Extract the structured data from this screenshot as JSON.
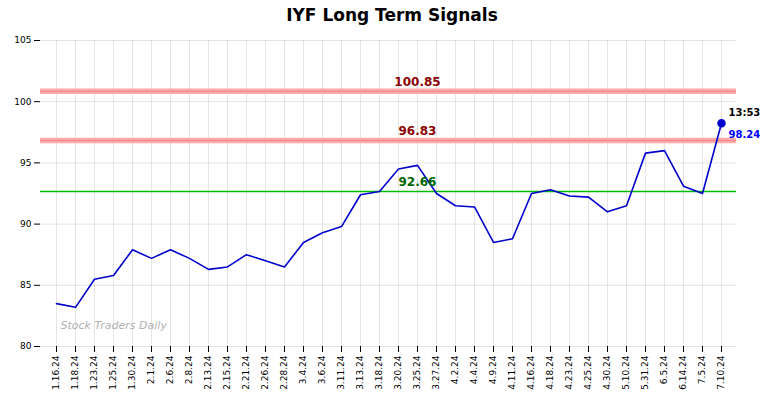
{
  "chart_data": {
    "type": "line",
    "title": "IYF Long Term Signals",
    "categories": [
      "1.16.24",
      "1.18.24",
      "1.23.24",
      "1.25.24",
      "1.30.24",
      "2.1.24",
      "2.6.24",
      "2.8.24",
      "2.13.24",
      "2.15.24",
      "2.21.24",
      "2.26.24",
      "2.28.24",
      "3.4.24",
      "3.6.24",
      "3.11.24",
      "3.13.24",
      "3.18.24",
      "3.20.24",
      "3.25.24",
      "3.27.24",
      "4.2.24",
      "4.4.24",
      "4.9.24",
      "4.11.24",
      "4.16.24",
      "4.18.24",
      "4.23.24",
      "4.25.24",
      "4.30.24",
      "5.10.24",
      "5.31.24",
      "6.5.24",
      "6.14.24",
      "7.5.24",
      "7.10.24"
    ],
    "values": [
      83.5,
      83.2,
      85.5,
      85.8,
      87.9,
      87.2,
      87.9,
      87.2,
      86.3,
      86.5,
      87.5,
      87.0,
      86.5,
      88.5,
      89.3,
      89.8,
      92.4,
      92.66,
      94.5,
      94.8,
      92.5,
      91.5,
      91.4,
      88.5,
      88.8,
      92.5,
      92.8,
      92.3,
      92.2,
      91.0,
      91.5,
      95.8,
      96.0,
      93.1,
      92.5,
      98.24
    ],
    "color": "#0000cc",
    "marker": "circle",
    "ylim": [
      80,
      105
    ],
    "yticks": [
      80,
      85,
      90,
      95,
      100,
      105
    ],
    "grid": true,
    "reference_lines": [
      {
        "value": 100.85,
        "label": "100.85",
        "color": "#ff8888",
        "band_color": "#ffaaaa",
        "band_half": 0.22,
        "label_color": "#8b0000"
      },
      {
        "value": 96.83,
        "label": "96.83",
        "color": "#ff8888",
        "band_color": "#ffaaaa",
        "band_half": 0.22,
        "label_color": "#8b0000"
      },
      {
        "value": 92.66,
        "label": "92.66",
        "color": "#00bb00",
        "label_color": "#006600"
      }
    ],
    "annotations": [
      {
        "text": "13:53",
        "category": "7.10.24",
        "value": 98.24,
        "color": "#000000"
      },
      {
        "text": "98.24",
        "category": "7.10.24",
        "value": 98.24,
        "color": "#0000ff"
      },
      {
        "text": "Stock Traders Daily",
        "color": "#b0b0b0"
      }
    ]
  }
}
